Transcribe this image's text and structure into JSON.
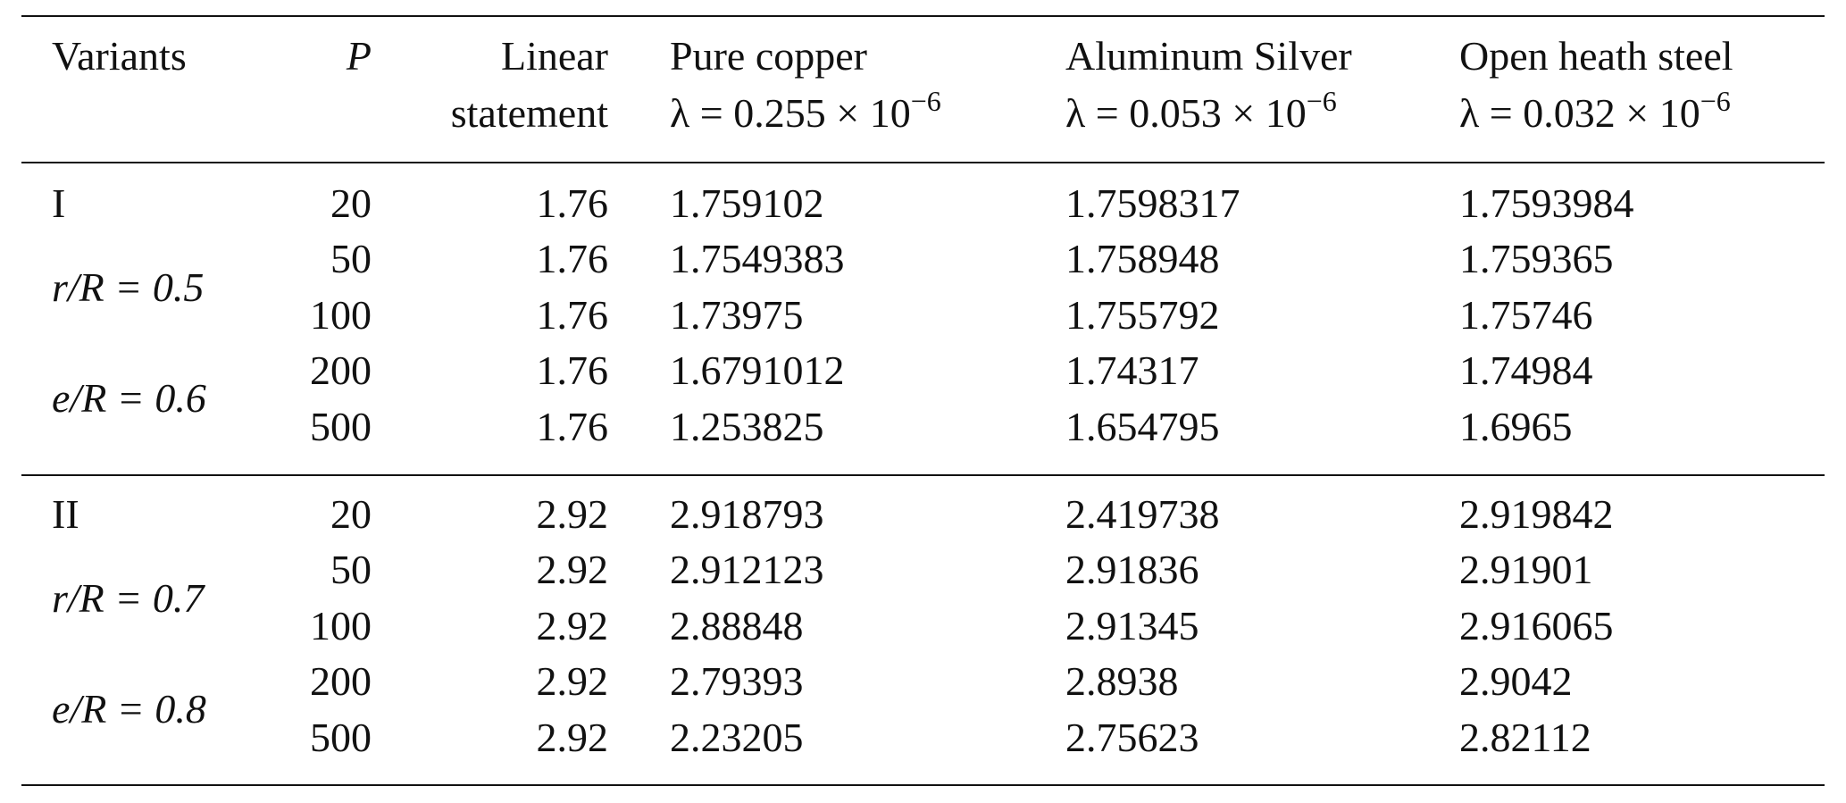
{
  "table": {
    "header": {
      "variants": "Variants",
      "p": "P",
      "linear": "Linear statement",
      "materials": [
        {
          "name": "Pure copper",
          "lambda": "λ = 0.255 × 10",
          "exponent": "−6"
        },
        {
          "name": "Aluminum Silver",
          "lambda": "λ = 0.053 × 10",
          "exponent": "−6"
        },
        {
          "name": "Open heath steel",
          "lambda": "λ = 0.032 × 10",
          "exponent": "−6"
        }
      ]
    },
    "groups": [
      {
        "label": "I",
        "conditions": [
          "r/R = 0.5",
          "e/R = 0.6"
        ],
        "rows": [
          [
            "20",
            "1.76",
            "1.759102",
            "1.7598317",
            "1.7593984"
          ],
          [
            "50",
            "1.76",
            "1.7549383",
            "1.758948",
            "1.759365"
          ],
          [
            "100",
            "1.76",
            "1.73975",
            "1.755792",
            "1.75746"
          ],
          [
            "200",
            "1.76",
            "1.6791012",
            "1.74317",
            "1.74984"
          ],
          [
            "500",
            "1.76",
            "1.253825",
            "1.654795",
            "1.6965"
          ]
        ]
      },
      {
        "label": "II",
        "conditions": [
          "r/R = 0.7",
          "e/R = 0.8"
        ],
        "rows": [
          [
            "20",
            "2.92",
            "2.918793",
            "2.419738",
            "2.919842"
          ],
          [
            "50",
            "2.92",
            "2.912123",
            "2.91836",
            "2.91901"
          ],
          [
            "100",
            "2.92",
            "2.88848",
            "2.91345",
            "2.916065"
          ],
          [
            "200",
            "2.92",
            "2.79393",
            "2.8938",
            "2.9042"
          ],
          [
            "500",
            "2.92",
            "2.23205",
            "2.75623",
            "2.82112"
          ]
        ]
      }
    ]
  }
}
